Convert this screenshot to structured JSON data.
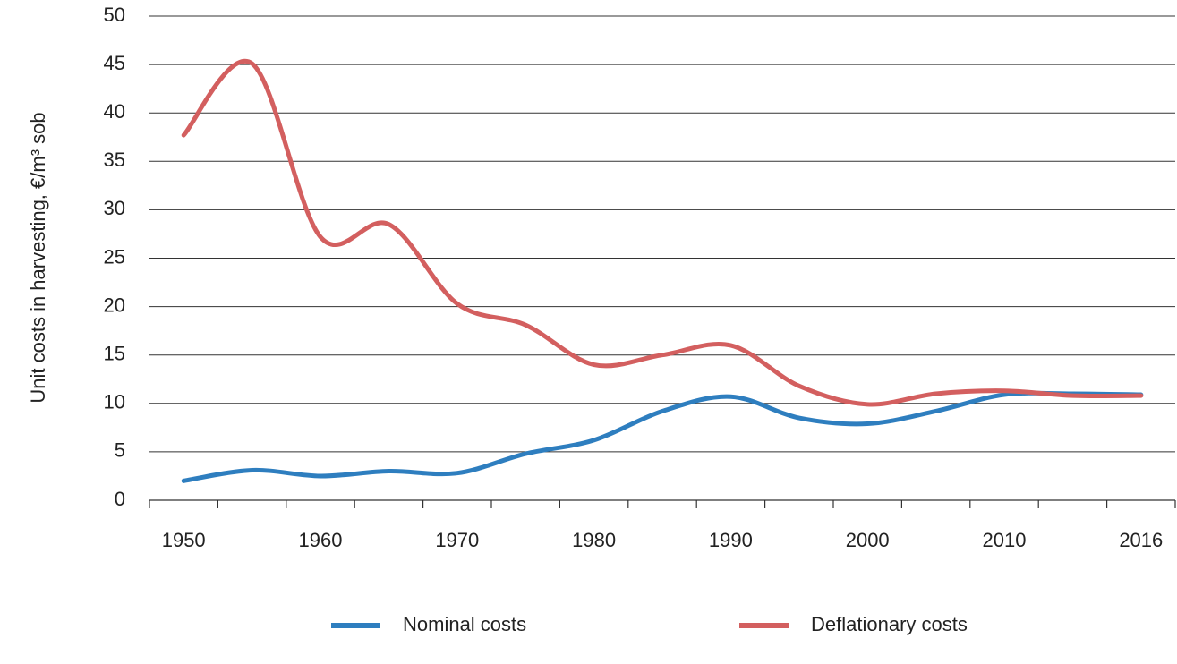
{
  "chart_data": {
    "type": "line",
    "y_label": "Unit costs in harvesting, €/m³ sob",
    "categories": [
      "1950",
      null,
      "1960",
      null,
      "1970",
      null,
      "1980",
      null,
      "1990",
      null,
      "2000",
      null,
      "2010",
      null,
      "2016"
    ],
    "series": [
      {
        "name": "Nominal costs",
        "color": "#2e7ebf",
        "values": [
          2.0,
          3.1,
          2.5,
          3.0,
          2.8,
          4.8,
          6.2,
          9.2,
          10.7,
          8.5,
          7.9,
          9.2,
          10.9,
          11.0,
          10.9
        ]
      },
      {
        "name": "Deflationary costs",
        "color": "#d35f5f",
        "values": [
          37.7,
          45.1,
          27.2,
          28.5,
          20.3,
          18.1,
          14.0,
          15.0,
          16.0,
          11.8,
          9.9,
          11.0,
          11.3,
          10.8,
          10.8
        ]
      }
    ],
    "ylim": [
      0,
      50
    ],
    "yticks": [
      0,
      5,
      10,
      15,
      20,
      25,
      30,
      35,
      40,
      45,
      50
    ],
    "grid": true,
    "legend": "bottom"
  }
}
